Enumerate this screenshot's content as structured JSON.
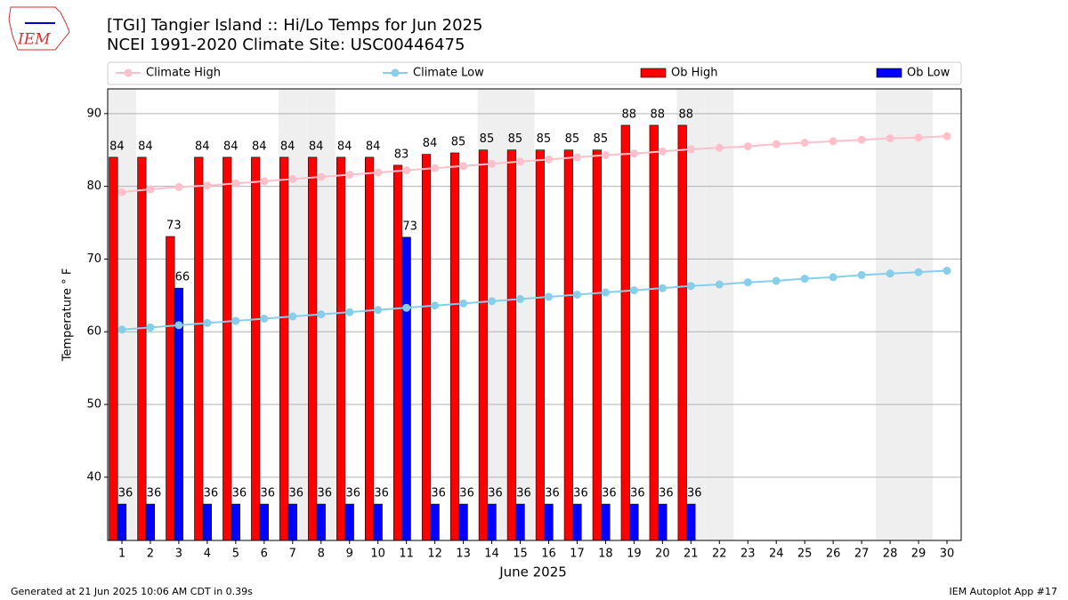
{
  "chart_data": {
    "type": "bar_line",
    "title": "[TGI] Tangier Island :: Hi/Lo Temps for Jun 2025",
    "subtitle": "NCEI 1991-2020 Climate Site: USC00446475",
    "y_label": "Temperature ° F",
    "x_label": "June 2025",
    "footer_left": "Generated at 21 Jun 2025 10:06 AM CDT in 0.39s",
    "footer_right": "IEM Autoplot App #17",
    "logo": "IEM",
    "x": [
      1,
      2,
      3,
      4,
      5,
      6,
      7,
      8,
      9,
      10,
      11,
      12,
      13,
      14,
      15,
      16,
      17,
      18,
      19,
      20,
      21,
      22,
      23,
      24,
      25,
      26,
      27,
      28,
      29,
      30
    ],
    "xlim": [
      0.5,
      30.5
    ],
    "xticks": [
      1,
      2,
      3,
      4,
      5,
      6,
      7,
      8,
      9,
      10,
      11,
      12,
      13,
      14,
      15,
      16,
      17,
      18,
      19,
      20,
      21,
      22,
      23,
      24,
      25,
      26,
      27,
      28,
      29,
      30
    ],
    "ylim": [
      31.3,
      93.4
    ],
    "yticks": [
      40,
      50,
      60,
      70,
      80,
      90
    ],
    "grid": true,
    "legend": "top",
    "shaded_days": [
      1,
      7,
      8,
      14,
      15,
      21,
      22,
      28,
      29
    ],
    "series": [
      {
        "name": "Climate High",
        "kind": "line",
        "color": "#ffc0cb",
        "values": [
          79.2,
          79.6,
          79.9,
          80.1,
          80.4,
          80.7,
          81.0,
          81.3,
          81.6,
          81.9,
          82.2,
          82.5,
          82.8,
          83.1,
          83.4,
          83.7,
          84.0,
          84.3,
          84.5,
          84.8,
          85.1,
          85.3,
          85.5,
          85.8,
          86.0,
          86.2,
          86.4,
          86.6,
          86.7,
          86.9
        ]
      },
      {
        "name": "Climate Low",
        "kind": "line",
        "color": "#87ceeb",
        "values": [
          60.3,
          60.6,
          60.9,
          61.2,
          61.5,
          61.8,
          62.1,
          62.4,
          62.7,
          63.0,
          63.3,
          63.6,
          63.9,
          64.2,
          64.5,
          64.8,
          65.1,
          65.4,
          65.7,
          66.0,
          66.3,
          66.5,
          66.8,
          67.0,
          67.3,
          67.5,
          67.8,
          68.0,
          68.2,
          68.4
        ]
      },
      {
        "name": "Ob High",
        "kind": "bar",
        "color": "#ff0000",
        "values": [
          84,
          84,
          73.1,
          84,
          84,
          84,
          84,
          84,
          84,
          84,
          82.9,
          84.4,
          84.6,
          85,
          85,
          85,
          85,
          85,
          88.4,
          88.4,
          88.4,
          null,
          null,
          null,
          null,
          null,
          null,
          null,
          null,
          null
        ],
        "value_labels": [
          "84",
          "84",
          "73",
          "84",
          "84",
          "84",
          "84",
          "84",
          "84",
          "84",
          "83",
          "84",
          "85",
          "85",
          "85",
          "85",
          "85",
          "85",
          "88",
          "88",
          "88",
          null,
          null,
          null,
          null,
          null,
          null,
          null,
          null,
          null
        ]
      },
      {
        "name": "Ob Low",
        "kind": "bar",
        "color": "#0000ff",
        "values": [
          36.3,
          36.3,
          66,
          36.3,
          36.3,
          36.3,
          36.3,
          36.3,
          36.3,
          36.3,
          73,
          36.3,
          36.3,
          36.3,
          36.3,
          36.3,
          36.3,
          36.3,
          36.3,
          36.3,
          36.3,
          null,
          null,
          null,
          null,
          null,
          null,
          null,
          null,
          null
        ],
        "value_labels": [
          "36",
          "36",
          "66",
          "36",
          "36",
          "36",
          "36",
          "36",
          "36",
          "36",
          "73",
          "36",
          "36",
          "36",
          "36",
          "36",
          "36",
          "36",
          "36",
          "36",
          "36",
          null,
          null,
          null,
          null,
          null,
          null,
          null,
          null,
          null
        ]
      }
    ]
  }
}
